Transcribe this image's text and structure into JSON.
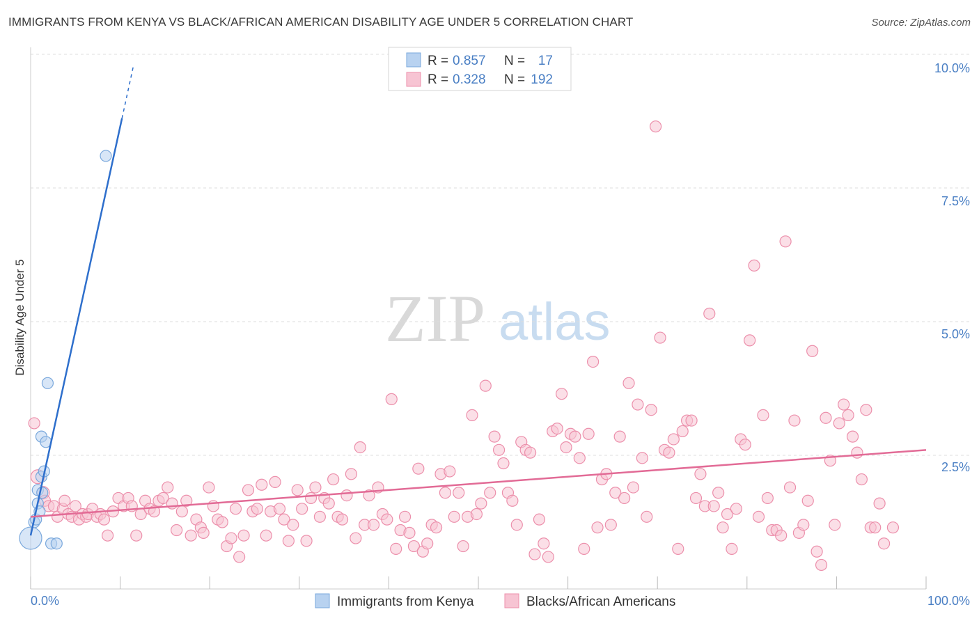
{
  "title": "IMMIGRANTS FROM KENYA VS BLACK/AFRICAN AMERICAN DISABILITY AGE UNDER 5 CORRELATION CHART",
  "source": "Source: ZipAtlas.com",
  "watermark": {
    "part1": "ZIP",
    "part2": "atlas"
  },
  "colors": {
    "blue_fill": "#b8d2f0",
    "blue_stroke": "#7aa8dc",
    "blue_line": "#2e6fcc",
    "pink_fill": "#f7c4d3",
    "pink_stroke": "#ec8fab",
    "pink_line": "#e26b96",
    "grid": "#dddddd",
    "tick_text": "#4a7fc4"
  },
  "legend": {
    "rows": [
      {
        "r_label": "R =",
        "r_value": "0.857",
        "n_label": "N =",
        "n_value": "17",
        "swatch": "blue"
      },
      {
        "r_label": "R =",
        "r_value": "0.328",
        "n_label": "N =",
        "n_value": "192",
        "swatch": "pink"
      }
    ]
  },
  "bottom_legend": [
    {
      "label": "Immigrants from Kenya",
      "swatch": "blue"
    },
    {
      "label": "Blacks/African Americans",
      "swatch": "pink"
    }
  ],
  "chart_data": {
    "type": "scatter",
    "title": "IMMIGRANTS FROM KENYA VS BLACK/AFRICAN AMERICAN DISABILITY AGE UNDER 5 CORRELATION CHART",
    "xlabel": "",
    "ylabel": "Disability Age Under 5",
    "xlim": [
      0,
      100
    ],
    "ylim": [
      0,
      10
    ],
    "x_tick_labels": [
      "0.0%",
      "100.0%"
    ],
    "y_ticks": [
      2.5,
      5.0,
      7.5,
      10.0
    ],
    "y_tick_labels": [
      "2.5%",
      "5.0%",
      "7.5%",
      "10.0%"
    ],
    "grid": true,
    "series": [
      {
        "name": "Immigrants from Kenya",
        "color": "blue",
        "r": 0.857,
        "n": 17,
        "trend": {
          "x1": 0.0,
          "y1": 1.0,
          "x2": 10.2,
          "y2": 8.8,
          "dash_to_x": 11.5,
          "dash_to_y": 9.8
        },
        "points": [
          [
            0.0,
            0.95,
            16
          ],
          [
            0.4,
            1.25,
            8
          ],
          [
            0.6,
            1.3,
            8
          ],
          [
            0.8,
            1.6,
            8
          ],
          [
            1.0,
            1.45,
            8
          ],
          [
            0.8,
            1.85,
            8
          ],
          [
            1.2,
            2.1,
            8
          ],
          [
            1.3,
            1.8,
            8
          ],
          [
            1.5,
            2.2,
            8
          ],
          [
            1.2,
            2.85,
            8
          ],
          [
            1.7,
            2.75,
            8
          ],
          [
            1.9,
            3.85,
            8
          ],
          [
            2.3,
            0.85,
            8
          ],
          [
            2.9,
            0.85,
            8
          ],
          [
            8.4,
            8.1,
            8
          ]
        ]
      },
      {
        "name": "Blacks/African Americans",
        "color": "pink",
        "r": 0.328,
        "n": 192,
        "trend": {
          "x1": 0.0,
          "y1": 1.35,
          "x2": 100.0,
          "y2": 2.6
        },
        "points": [
          [
            0.4,
            3.1,
            8
          ],
          [
            0.8,
            2.1,
            10
          ],
          [
            1.4,
            1.8,
            9
          ],
          [
            1.6,
            1.65,
            8
          ],
          [
            2.0,
            1.55,
            8
          ],
          [
            2.6,
            1.55,
            8
          ],
          [
            3.0,
            1.35,
            8
          ],
          [
            3.6,
            1.5,
            8
          ],
          [
            3.8,
            1.65,
            8
          ],
          [
            4.2,
            1.4,
            8
          ],
          [
            4.6,
            1.35,
            8
          ],
          [
            5.0,
            1.55,
            8
          ],
          [
            5.4,
            1.3,
            8
          ],
          [
            5.8,
            1.4,
            8
          ],
          [
            6.2,
            1.35,
            8
          ],
          [
            6.4,
            1.4,
            8
          ],
          [
            6.9,
            1.5,
            8
          ],
          [
            7.4,
            1.35,
            8
          ],
          [
            7.8,
            1.4,
            8
          ],
          [
            8.2,
            1.3,
            8
          ],
          [
            8.6,
            1.0,
            8
          ],
          [
            9.2,
            1.45,
            8
          ],
          [
            9.8,
            1.7,
            8
          ],
          [
            10.4,
            1.55,
            8
          ],
          [
            10.9,
            1.7,
            8
          ],
          [
            11.3,
            1.55,
            8
          ],
          [
            11.8,
            1.0,
            8
          ],
          [
            12.3,
            1.4,
            8
          ],
          [
            12.8,
            1.65,
            8
          ],
          [
            13.3,
            1.5,
            8
          ],
          [
            13.8,
            1.45,
            8
          ],
          [
            14.3,
            1.65,
            8
          ],
          [
            14.8,
            1.7,
            8
          ],
          [
            15.3,
            1.9,
            8
          ],
          [
            15.8,
            1.6,
            8
          ],
          [
            16.3,
            1.1,
            8
          ],
          [
            16.9,
            1.45,
            8
          ],
          [
            17.4,
            1.65,
            8
          ],
          [
            17.9,
            1.0,
            8
          ],
          [
            18.5,
            1.3,
            8
          ],
          [
            19.0,
            1.15,
            8
          ],
          [
            19.3,
            1.05,
            8
          ],
          [
            19.9,
            1.9,
            8
          ],
          [
            20.4,
            1.55,
            8
          ],
          [
            20.9,
            1.3,
            8
          ],
          [
            21.4,
            1.25,
            8
          ],
          [
            21.9,
            0.8,
            8
          ],
          [
            22.4,
            0.95,
            8
          ],
          [
            22.9,
            1.5,
            8
          ],
          [
            23.3,
            0.6,
            8
          ],
          [
            23.8,
            1.0,
            8
          ],
          [
            24.3,
            1.85,
            8
          ],
          [
            24.8,
            1.45,
            8
          ],
          [
            25.3,
            1.5,
            8
          ],
          [
            25.8,
            1.95,
            8
          ],
          [
            26.3,
            1.0,
            8
          ],
          [
            26.8,
            1.45,
            8
          ],
          [
            27.3,
            2.0,
            8
          ],
          [
            27.8,
            1.5,
            8
          ],
          [
            28.3,
            1.3,
            8
          ],
          [
            28.8,
            0.9,
            8
          ],
          [
            29.3,
            1.2,
            8
          ],
          [
            29.8,
            1.85,
            8
          ],
          [
            30.3,
            1.5,
            8
          ],
          [
            30.8,
            0.9,
            8
          ],
          [
            31.3,
            1.7,
            8
          ],
          [
            31.8,
            1.9,
            8
          ],
          [
            32.3,
            1.35,
            8
          ],
          [
            32.8,
            1.7,
            8
          ],
          [
            33.3,
            1.6,
            8
          ],
          [
            33.8,
            2.05,
            8
          ],
          [
            34.3,
            1.35,
            8
          ],
          [
            34.8,
            1.3,
            8
          ],
          [
            35.3,
            1.75,
            8
          ],
          [
            35.8,
            2.15,
            8
          ],
          [
            36.3,
            0.95,
            8
          ],
          [
            36.8,
            2.65,
            8
          ],
          [
            37.3,
            1.2,
            8
          ],
          [
            37.8,
            1.75,
            8
          ],
          [
            38.3,
            1.2,
            8
          ],
          [
            38.8,
            1.9,
            8
          ],
          [
            39.3,
            1.4,
            8
          ],
          [
            39.8,
            1.3,
            8
          ],
          [
            40.3,
            3.55,
            8
          ],
          [
            40.8,
            0.75,
            8
          ],
          [
            41.3,
            1.1,
            8
          ],
          [
            41.8,
            1.35,
            8
          ],
          [
            42.3,
            1.05,
            8
          ],
          [
            42.8,
            0.8,
            8
          ],
          [
            43.3,
            2.25,
            8
          ],
          [
            43.8,
            0.7,
            8
          ],
          [
            44.3,
            0.85,
            8
          ],
          [
            44.8,
            1.2,
            8
          ],
          [
            45.3,
            1.15,
            8
          ],
          [
            45.8,
            2.15,
            8
          ],
          [
            46.3,
            1.8,
            8
          ],
          [
            46.8,
            2.2,
            8
          ],
          [
            47.3,
            1.35,
            8
          ],
          [
            47.8,
            1.8,
            8
          ],
          [
            48.3,
            0.8,
            8
          ],
          [
            48.8,
            1.35,
            8
          ],
          [
            49.3,
            3.25,
            8
          ],
          [
            49.8,
            1.4,
            8
          ],
          [
            50.3,
            1.6,
            8
          ],
          [
            50.8,
            3.8,
            8
          ],
          [
            51.3,
            1.8,
            8
          ],
          [
            51.8,
            2.85,
            8
          ],
          [
            52.3,
            2.6,
            8
          ],
          [
            52.8,
            2.35,
            8
          ],
          [
            53.3,
            1.8,
            8
          ],
          [
            53.8,
            1.65,
            8
          ],
          [
            54.3,
            1.2,
            8
          ],
          [
            54.8,
            2.75,
            8
          ],
          [
            55.3,
            2.6,
            8
          ],
          [
            55.8,
            2.55,
            8
          ],
          [
            56.3,
            0.65,
            8
          ],
          [
            56.8,
            1.3,
            8
          ],
          [
            57.3,
            0.85,
            8
          ],
          [
            57.8,
            0.6,
            8
          ],
          [
            58.3,
            2.95,
            8
          ],
          [
            58.8,
            3.0,
            8
          ],
          [
            59.3,
            3.65,
            8
          ],
          [
            59.8,
            2.65,
            8
          ],
          [
            60.3,
            2.9,
            8
          ],
          [
            60.8,
            2.85,
            8
          ],
          [
            61.3,
            2.45,
            8
          ],
          [
            61.8,
            0.75,
            8
          ],
          [
            62.3,
            2.9,
            8
          ],
          [
            62.8,
            4.25,
            8
          ],
          [
            63.3,
            1.15,
            8
          ],
          [
            63.8,
            2.05,
            8
          ],
          [
            64.3,
            2.15,
            8
          ],
          [
            64.8,
            1.2,
            8
          ],
          [
            65.3,
            1.8,
            8
          ],
          [
            65.8,
            2.85,
            8
          ],
          [
            66.3,
            1.7,
            8
          ],
          [
            66.8,
            3.85,
            8
          ],
          [
            67.3,
            1.9,
            8
          ],
          [
            67.8,
            3.45,
            8
          ],
          [
            68.3,
            2.45,
            8
          ],
          [
            68.8,
            1.35,
            8
          ],
          [
            69.3,
            3.35,
            8
          ],
          [
            69.8,
            8.65,
            8
          ],
          [
            70.3,
            4.7,
            8
          ],
          [
            70.8,
            2.6,
            8
          ],
          [
            71.3,
            2.55,
            8
          ],
          [
            71.8,
            2.8,
            8
          ],
          [
            72.3,
            0.75,
            8
          ],
          [
            72.8,
            2.95,
            8
          ],
          [
            73.3,
            3.15,
            8
          ],
          [
            73.8,
            3.15,
            8
          ],
          [
            74.3,
            1.7,
            8
          ],
          [
            74.8,
            2.15,
            8
          ],
          [
            75.3,
            1.55,
            8
          ],
          [
            75.8,
            5.15,
            8
          ],
          [
            76.3,
            1.55,
            8
          ],
          [
            76.8,
            1.8,
            8
          ],
          [
            77.3,
            1.15,
            8
          ],
          [
            77.8,
            1.4,
            8
          ],
          [
            78.3,
            0.75,
            8
          ],
          [
            78.8,
            1.5,
            8
          ],
          [
            79.3,
            2.8,
            8
          ],
          [
            79.8,
            2.7,
            8
          ],
          [
            80.3,
            4.65,
            8
          ],
          [
            80.8,
            6.05,
            8
          ],
          [
            81.3,
            1.35,
            8
          ],
          [
            81.8,
            3.25,
            8
          ],
          [
            82.3,
            1.7,
            8
          ],
          [
            82.8,
            1.1,
            8
          ],
          [
            83.3,
            1.1,
            8
          ],
          [
            83.8,
            1.0,
            8
          ],
          [
            84.3,
            6.5,
            8
          ],
          [
            84.8,
            1.9,
            8
          ],
          [
            85.3,
            3.15,
            8
          ],
          [
            85.8,
            1.05,
            8
          ],
          [
            86.3,
            1.2,
            8
          ],
          [
            86.8,
            1.65,
            8
          ],
          [
            87.3,
            4.45,
            8
          ],
          [
            87.8,
            0.7,
            8
          ],
          [
            88.3,
            0.45,
            8
          ],
          [
            88.8,
            3.2,
            8
          ],
          [
            89.3,
            2.4,
            8
          ],
          [
            89.8,
            1.2,
            8
          ],
          [
            90.3,
            3.1,
            8
          ],
          [
            90.8,
            3.45,
            8
          ],
          [
            91.3,
            3.25,
            8
          ],
          [
            91.8,
            2.85,
            8
          ],
          [
            92.3,
            2.55,
            8
          ],
          [
            92.8,
            2.05,
            8
          ],
          [
            93.3,
            3.35,
            8
          ],
          [
            93.8,
            1.15,
            8
          ],
          [
            94.3,
            1.15,
            8
          ],
          [
            94.8,
            1.6,
            8
          ],
          [
            95.3,
            0.85,
            8
          ],
          [
            96.3,
            1.15,
            8
          ]
        ]
      }
    ]
  }
}
